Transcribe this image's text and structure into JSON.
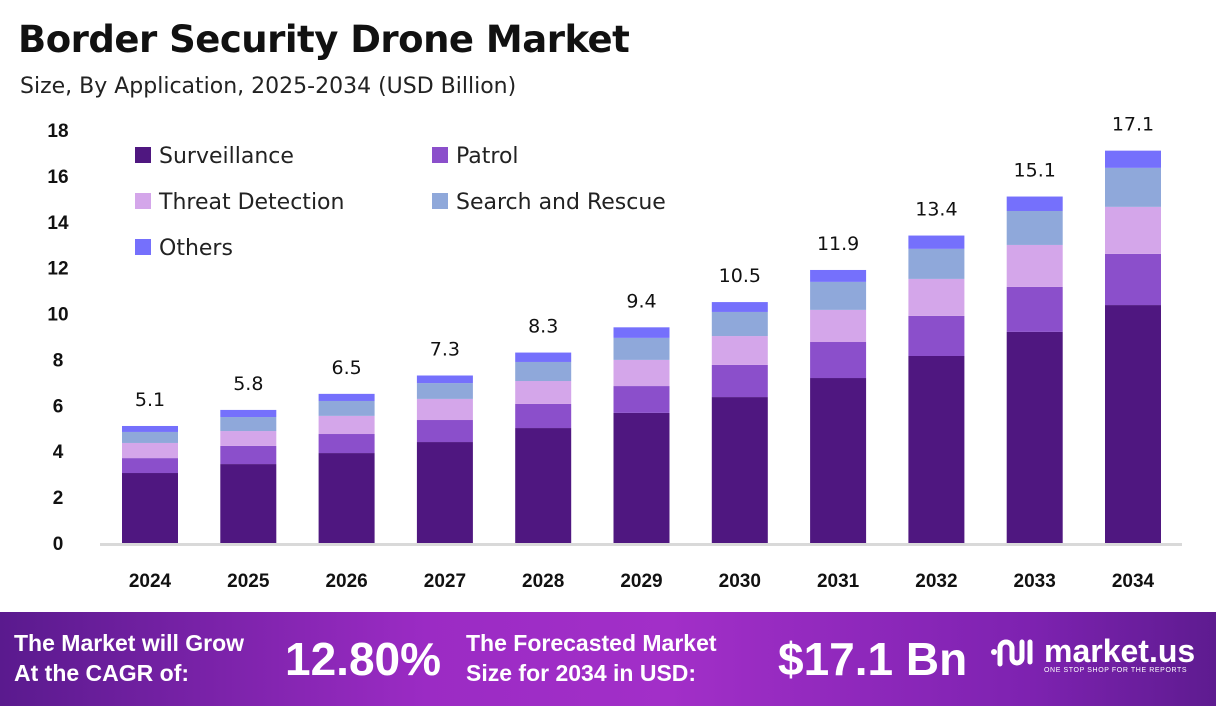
{
  "title": "Border Security Drone Market",
  "subtitle": "Size, By Application, 2025-2034 (USD Billion)",
  "chart_data": {
    "type": "bar",
    "stacked": true,
    "title": "Border Security Drone Market",
    "subtitle": "Size, By Application, 2025-2034 (USD Billion)",
    "xlabel": "",
    "ylabel": "",
    "ylim": [
      0,
      18
    ],
    "yticks": [
      0,
      2,
      4,
      6,
      8,
      10,
      12,
      14,
      16,
      18
    ],
    "grid": false,
    "legend_position": "top-left",
    "categories": [
      "2024",
      "2025",
      "2026",
      "2027",
      "2028",
      "2029",
      "2030",
      "2031",
      "2032",
      "2033",
      "2034"
    ],
    "totals": [
      5.1,
      5.8,
      6.5,
      7.3,
      8.3,
      9.4,
      10.5,
      11.9,
      13.4,
      15.1,
      17.1
    ],
    "total_labels": [
      "5.1",
      "5.8",
      "6.5",
      "7.3",
      "8.3",
      "9.4",
      "10.5",
      "11.9",
      "13.4",
      "15.1",
      "17.1"
    ],
    "series": [
      {
        "name": "Surveillance",
        "color": "#4f1780",
        "values": [
          3.05,
          3.44,
          3.92,
          4.4,
          5.01,
          5.67,
          6.36,
          7.19,
          8.15,
          9.2,
          10.37
        ]
      },
      {
        "name": "Patrol",
        "color": "#8b4fcb",
        "values": [
          0.65,
          0.79,
          0.83,
          0.96,
          1.05,
          1.17,
          1.4,
          1.57,
          1.75,
          1.96,
          2.23
        ]
      },
      {
        "name": "Threat Detection",
        "color": "#d4a6ea",
        "values": [
          0.66,
          0.65,
          0.79,
          0.92,
          1.0,
          1.14,
          1.26,
          1.4,
          1.61,
          1.83,
          2.05
        ]
      },
      {
        "name": "Search and Rescue",
        "color": "#8fa8da",
        "values": [
          0.48,
          0.61,
          0.65,
          0.69,
          0.83,
          0.96,
          1.05,
          1.22,
          1.31,
          1.48,
          1.7
        ]
      },
      {
        "name": "Others",
        "color": "#7570fc",
        "values": [
          0.26,
          0.31,
          0.31,
          0.33,
          0.41,
          0.46,
          0.43,
          0.52,
          0.58,
          0.63,
          0.75
        ]
      }
    ]
  },
  "footer": {
    "cagr_label_line1": "The Market will Grow",
    "cagr_label_line2": "At the CAGR of:",
    "cagr_value": "12.80%",
    "forecast_label_line1": "The Forecasted Market",
    "forecast_label_line2": "Size for 2034 in USD:",
    "forecast_value": "$17.1 Bn",
    "logo_name": "market.us",
    "logo_tagline": "ONE STOP SHOP FOR THE REPORTS"
  }
}
